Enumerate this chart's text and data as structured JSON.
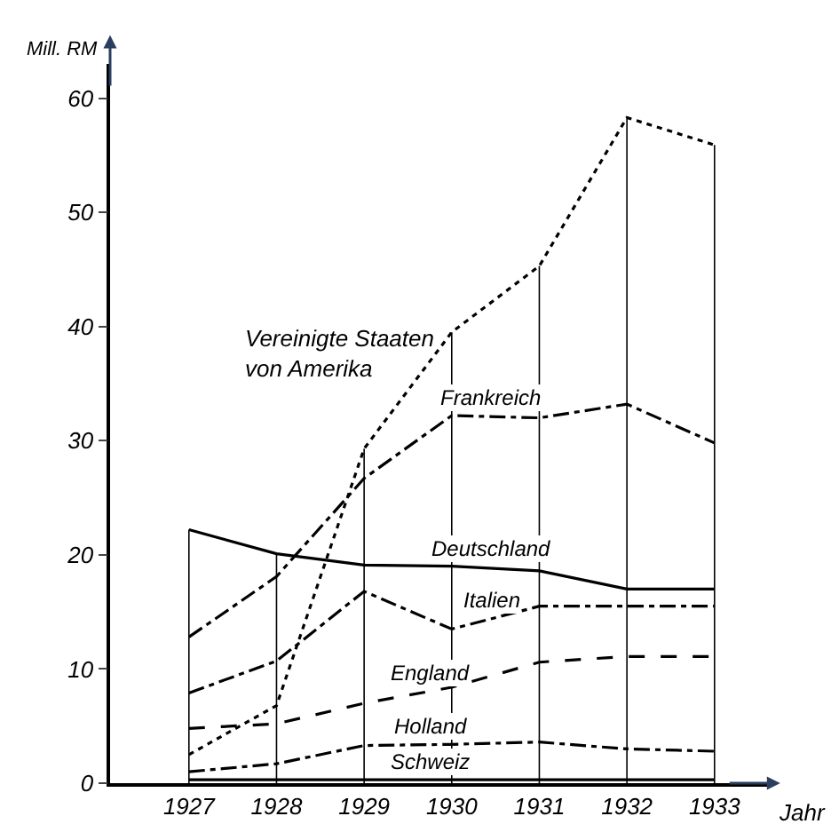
{
  "chart_data": {
    "type": "line",
    "xlabel": "Jahr",
    "ylabel": "Mill. RM",
    "x": [
      1927,
      1928,
      1929,
      1930,
      1931,
      1932,
      1933
    ],
    "series": [
      {
        "name": "Vereinigte Staaten\nvon Amerika",
        "color": "#000000",
        "line_style": "dotted",
        "values": [
          2.5,
          6.8,
          29.3,
          39.5,
          45.3,
          58.3,
          55.9
        ]
      },
      {
        "name": "Frankreich",
        "color": "#000000",
        "line_style": "dashdot",
        "values": [
          12.8,
          18.1,
          26.7,
          32.2,
          32.0,
          33.2,
          29.8
        ]
      },
      {
        "name": "Deutschland",
        "color": "#000000",
        "line_style": "solid",
        "values": [
          22.2,
          20.1,
          19.1,
          19.0,
          18.6,
          17.0,
          17.0
        ]
      },
      {
        "name": "Italien",
        "color": "#000000",
        "line_style": "dashdot",
        "values": [
          7.9,
          10.7,
          16.8,
          13.5,
          15.5,
          15.5,
          15.5
        ]
      },
      {
        "name": "England",
        "color": "#000000",
        "line_style": "dashed",
        "values": [
          4.8,
          5.2,
          7.0,
          8.4,
          10.6,
          11.1,
          11.1
        ]
      },
      {
        "name": "Holland",
        "color": "#000000",
        "line_style": "dashdot",
        "values": [
          1.0,
          1.7,
          3.3,
          3.4,
          3.6,
          3.0,
          2.8
        ]
      },
      {
        "name": "Schweiz",
        "color": "#000000",
        "line_style": "solid",
        "values": [
          0.3,
          0.3,
          0.3,
          0.3,
          0.3,
          0.3,
          0.3
        ]
      }
    ],
    "xlim": [
      1926.1,
      1933.6
    ],
    "xticks": [
      1927,
      1928,
      1929,
      1930,
      1931,
      1932,
      1933
    ],
    "ylim": [
      0,
      63
    ],
    "yticks": [
      0,
      10,
      20,
      30,
      40,
      50,
      60
    ],
    "ref_lines": [
      {
        "axis": "x",
        "value": 1927
      },
      {
        "axis": "x",
        "value": 1928
      },
      {
        "axis": "x",
        "value": 1929
      },
      {
        "axis": "x",
        "value": 1930
      },
      {
        "axis": "x",
        "value": 1931
      },
      {
        "axis": "x",
        "value": 1932
      },
      {
        "axis": "x",
        "value": 1933
      }
    ],
    "grid": false,
    "legend": false,
    "marker": "none"
  }
}
